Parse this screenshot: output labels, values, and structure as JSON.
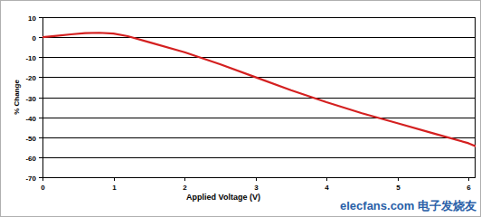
{
  "chart_data": {
    "type": "line",
    "x_label": "Applied Voltage (V)",
    "y_label": "% Change",
    "annotations": [
      "elecfans.com 电子发烧友"
    ],
    "x": [
      0,
      0.2,
      0.4,
      0.6,
      0.8,
      1.0,
      1.2,
      1.5,
      2.0,
      2.5,
      3.0,
      3.5,
      4.0,
      4.5,
      5.0,
      5.5,
      6.0,
      6.1
    ],
    "series": [
      {
        "name": "% Change",
        "color": "#d42020",
        "values": [
          0,
          0.7,
          1.4,
          2.0,
          2.2,
          1.8,
          0.5,
          -2.5,
          -7.5,
          -13.5,
          -20,
          -26.5,
          -32.5,
          -38,
          -43,
          -48,
          -53,
          -54.5
        ]
      }
    ],
    "xlim": [
      0,
      6.1
    ],
    "xticks": [
      0,
      1,
      2,
      3,
      4,
      5,
      6
    ],
    "ylim": [
      -70,
      10
    ],
    "yticks": [
      -70,
      -60,
      -50,
      -40,
      -30,
      -20,
      -10,
      0,
      10
    ],
    "grid": true
  }
}
